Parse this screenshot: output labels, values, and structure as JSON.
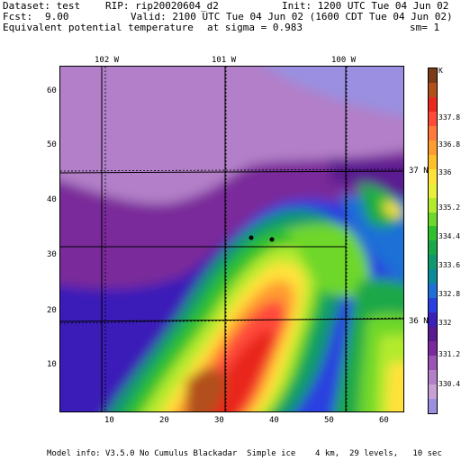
{
  "header": {
    "dataset": "Dataset: test",
    "rip": "RIP: rip20020604_d2",
    "init": "Init: 1200 UTC Tue 04 Jun 02",
    "fcst_label": "Fcst:",
    "fcst_value": "9.00",
    "valid": "Valid: 2100 UTC Tue 04 Jun 02 (1600 CDT Tue 04 Jun 02)",
    "field": "Equivalent potential temperature",
    "sigma": "at sigma = 0.983",
    "sm": "sm= 1"
  },
  "map": {
    "x_ticks": [
      "10",
      "20",
      "30",
      "40",
      "50",
      "60"
    ],
    "y_ticks": [
      "60",
      "50",
      "40",
      "30",
      "20",
      "10"
    ],
    "longitude_labels": [
      "102 W",
      "101 W",
      "100 W"
    ],
    "latitude_labels": [
      "37 N",
      "36 N"
    ],
    "markers": 2
  },
  "colorbar": {
    "unit": "K",
    "labels": [
      "337.8",
      "336.8",
      "336",
      "335.2",
      "334.4",
      "333.6",
      "332.8",
      "332",
      "331.2",
      "330.4"
    ],
    "colors": [
      "#7a3b16",
      "#b2501c",
      "#e8281e",
      "#ff4a3a",
      "#ff7a3a",
      "#ff9c30",
      "#ffc02a",
      "#ffe23a",
      "#e8f03a",
      "#b4ea2e",
      "#6ed72c",
      "#2fc02e",
      "#1aa84a",
      "#11986e",
      "#0d8a9a",
      "#1f6fd6",
      "#2a3fe0",
      "#3a1fb8",
      "#5a1a90",
      "#7a2a9a",
      "#9a55b4",
      "#b27fc8",
      "#c8a0d6",
      "#9a8fe0"
    ]
  },
  "footer": "Model info: V3.5.0 No Cumulus Blackadar  Simple ice    4 km,  29 levels,   10 sec"
}
